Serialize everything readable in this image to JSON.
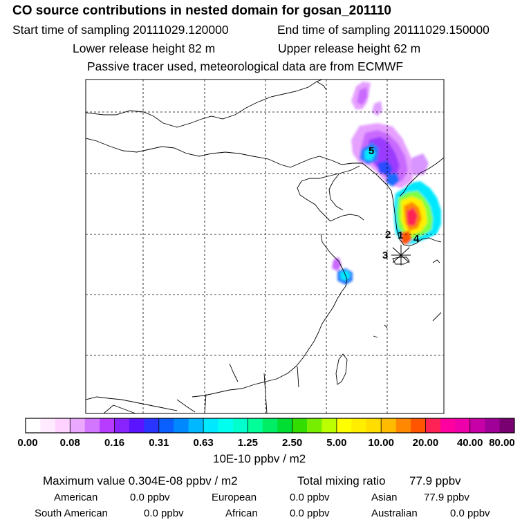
{
  "header": {
    "title": "CO  source contributions in nested domain for gosan_201110",
    "start_label": "Start time of sampling 20111029.120000",
    "end_label": "End time of sampling 20111029.150000",
    "lower_label": "Lower release height   82 m",
    "upper_label": "Upper release height   62 m",
    "tracer_label": "Passive tracer used, meteorological data are from ECMWF"
  },
  "chart_data": {
    "type": "heatmap",
    "title": "CO  source contributions in nested domain for gosan_201110",
    "markers": [
      "1",
      "2",
      "3",
      "4",
      "5"
    ],
    "colorbar": {
      "tick_labels": [
        "0.00",
        "0.08",
        "0.16",
        "0.31",
        "0.63",
        "1.25",
        "2.50",
        "5.00",
        "10.00",
        "20.00",
        "40.00",
        "80.00"
      ],
      "unit": "10E-10 ppbv / m2",
      "colors": [
        [
          "#ffffff",
          "#ffeaff",
          "#ffd2ff"
        ],
        [
          "#eba8ff",
          "#d276ff",
          "#b83cff"
        ],
        [
          "#8a24ff",
          "#5a14ff",
          "#2a34ff"
        ],
        [
          "#0a60ff",
          "#0088ff",
          "#00b8ff"
        ],
        [
          "#00e8ff",
          "#00ffee",
          "#00ffcc"
        ],
        [
          "#00ff99",
          "#00ee66",
          "#00dd33"
        ],
        [
          "#33dd00",
          "#77ee00",
          "#bbff00"
        ],
        [
          "#ffff00",
          "#ffee00",
          "#ffdd00"
        ],
        [
          "#ffbb00",
          "#ff8800",
          "#ff5500"
        ],
        [
          "#ff2255",
          "#ff00a0",
          "#ee00aa"
        ],
        [
          "#c800a8",
          "#a00098",
          "#780070"
        ]
      ]
    }
  },
  "summary": {
    "max_value": "Maximum value  0.304E-08 ppbv / m2",
    "total_label": "Total mixing ratio",
    "total_value": "77.9 ppbv",
    "regions": [
      {
        "name": "American",
        "value": "0.0 ppbv"
      },
      {
        "name": "European",
        "value": "0.0 ppbv"
      },
      {
        "name": "Asian",
        "value": "77.9 ppbv"
      },
      {
        "name": "South American",
        "value": "0.0 ppbv"
      },
      {
        "name": "African",
        "value": "0.0 ppbv"
      },
      {
        "name": "Australian",
        "value": "0.0 ppbv"
      }
    ]
  }
}
